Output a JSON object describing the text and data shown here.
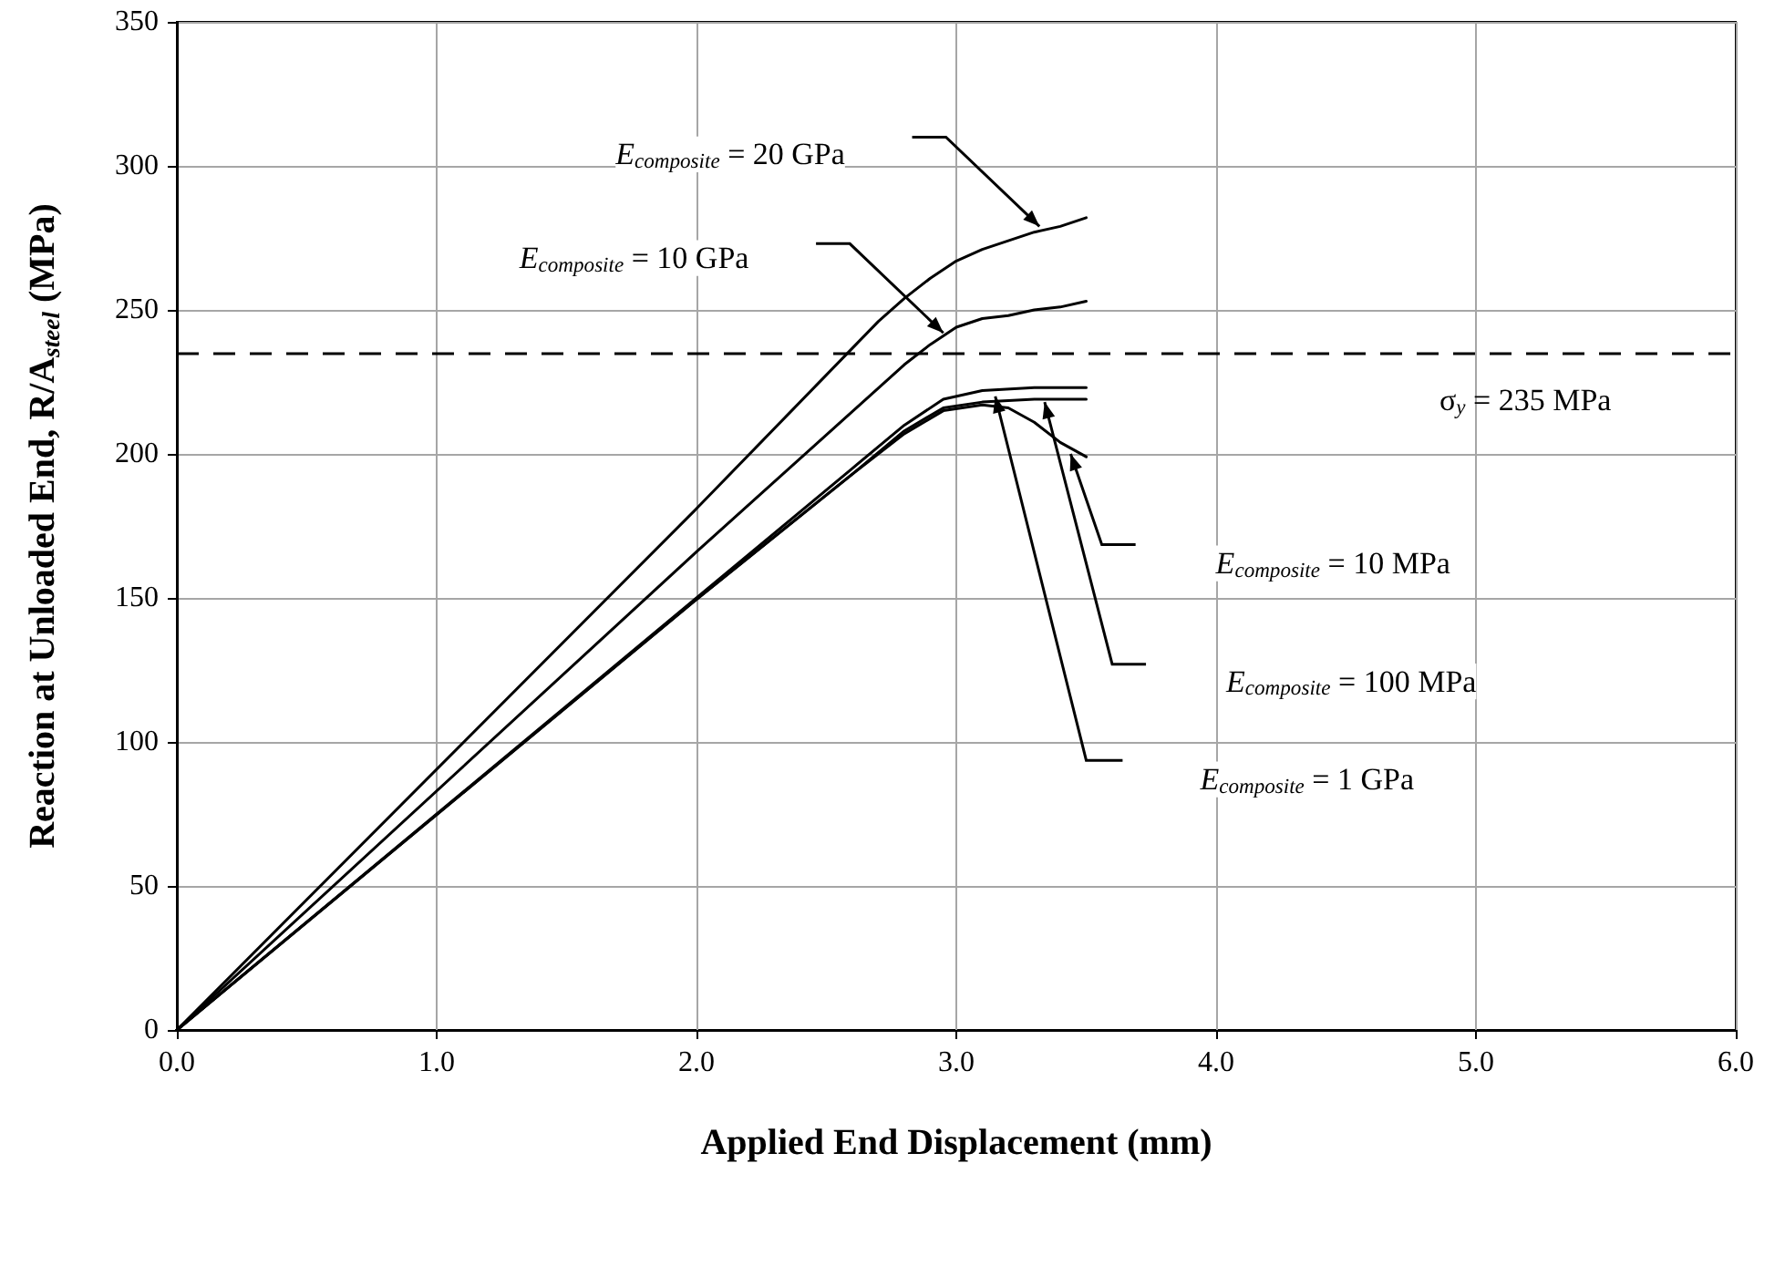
{
  "chart_data": {
    "type": "line",
    "xlabel": "Applied End Displacement (mm)",
    "ylabel": "Reaction at Unloaded End, R/A$_{steel}$ (MPa)",
    "xlim": [
      0,
      6
    ],
    "xticks": [
      {
        "value": 0,
        "label": "0.0"
      },
      {
        "value": 1,
        "label": "1.0"
      },
      {
        "value": 2,
        "label": "2.0"
      },
      {
        "value": 3,
        "label": "3.0"
      },
      {
        "value": 4,
        "label": "4.0"
      },
      {
        "value": 5,
        "label": "5.0"
      },
      {
        "value": 6,
        "label": "6.0"
      }
    ],
    "ylim": [
      0,
      350
    ],
    "yticks": [
      0,
      50,
      100,
      150,
      200,
      250,
      300,
      350
    ],
    "grid": true,
    "marker": "none",
    "line_style": "solid",
    "series": [
      {
        "color": "#000000",
        "x": [
          0,
          2.0,
          2.7,
          2.8,
          2.9,
          3.0,
          3.1,
          3.2,
          3.3,
          3.4,
          3.5
        ],
        "values": [
          0,
          181,
          246,
          254,
          261,
          267,
          271,
          274,
          277,
          279,
          282
        ]
      },
      {
        "color": "#000000",
        "x": [
          0,
          2.0,
          2.8,
          2.9,
          3.0,
          3.1,
          3.2,
          3.3,
          3.4,
          3.5
        ],
        "values": [
          0,
          166,
          231,
          238,
          244,
          247,
          248,
          250,
          251,
          253
        ]
      },
      {
        "color": "#000000",
        "x": [
          0,
          2.0,
          2.6,
          2.8,
          2.95,
          3.1,
          3.3,
          3.5
        ],
        "values": [
          0,
          150,
          195,
          210,
          219,
          222,
          223,
          223
        ]
      },
      {
        "color": "#000000",
        "x": [
          0,
          2.0,
          2.6,
          2.8,
          2.95,
          3.1,
          3.3,
          3.5
        ],
        "values": [
          0,
          149.5,
          193,
          208,
          216,
          218,
          219,
          219
        ]
      },
      {
        "color": "#000000",
        "x": [
          0,
          2.0,
          2.6,
          2.8,
          2.95,
          3.1,
          3.2,
          3.3,
          3.4,
          3.5
        ],
        "values": [
          0,
          149.5,
          193,
          207,
          215,
          217,
          216,
          211,
          204,
          199
        ]
      }
    ],
    "ref_lines": [
      {
        "axis": "y",
        "value": 235,
        "label": "σ$_{y}$ = 235 MPa",
        "color": "#000000",
        "line_style": "dashed"
      }
    ],
    "annotations": [
      "E$_{composite}$ = 20 GPa",
      "E$_{composite}$ = 10 GPa",
      "E$_{composite}$ = 10 MPa",
      "E$_{composite}$ = 100 MPa",
      "E$_{composite}$ = 1 GPa"
    ]
  }
}
